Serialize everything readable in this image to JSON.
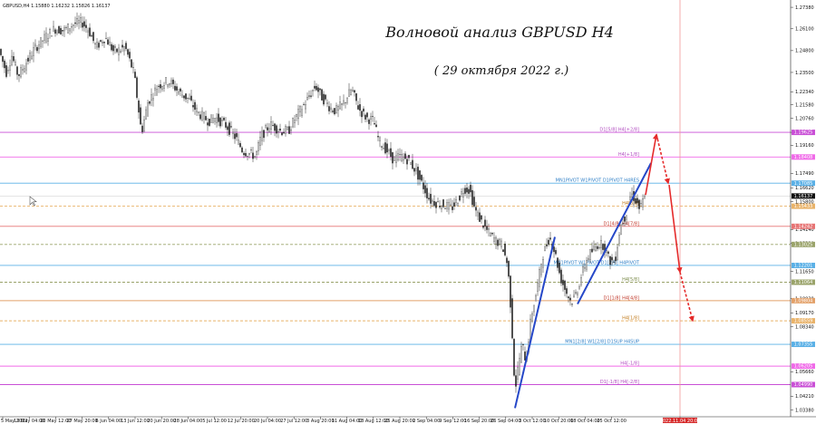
{
  "header": {
    "symbol_line": "GBPUSD,H4  1.15880 1.16232 1.15826 1.16137",
    "title": "Волновой анализ GBPUSD H4",
    "subtitle": "( 29 октября 2022 г.)"
  },
  "chart_data": {
    "type": "candlestick",
    "symbol": "GBPUSD",
    "timeframe": "H4",
    "ylim": [
      1.032,
      1.276
    ],
    "y_ticks": [
      "1.27380",
      "1.26100",
      "1.24800",
      "1.23500",
      "1.22340",
      "1.21580",
      "1.20760",
      "1.19930",
      "1.19160",
      "1.17490",
      "1.16620",
      "1.15800",
      "1.14140",
      "1.13320",
      "1.11650",
      "1.10020",
      "1.09170",
      "1.08340",
      "1.05660",
      "1.04210",
      "1.03380"
    ],
    "x_labels": [
      "5 May 2022",
      "13 May 04:00",
      "20 May 12:00",
      "27 May 20:00",
      "6 Jun 04:00",
      "13 Jun 12:00",
      "20 Jun 20:00",
      "28 Jun 04:00",
      "5 Jul 12:00",
      "12 Jul 20:00",
      "20 Jul 04:00",
      "27 Jul 12:00",
      "3 Aug 20:00",
      "11 Aug 04:00",
      "18 Aug 12:00",
      "25 Aug 20:00",
      "2 Sep 04:00",
      "9 Sep 12:00",
      "16 Sep 20:00",
      "26 Sep 04:00",
      "3 Oct 12:00",
      "10 Oct 20:00",
      "18 Oct 04:00",
      "25 Oct 12:00",
      "2022.11.04 20:00"
    ],
    "price_path": [
      [
        0,
        1.251
      ],
      [
        4,
        1.243
      ],
      [
        9,
        1.235
      ],
      [
        15,
        1.245
      ],
      [
        22,
        1.233
      ],
      [
        30,
        1.24
      ],
      [
        40,
        1.249
      ],
      [
        52,
        1.256
      ],
      [
        62,
        1.261
      ],
      [
        72,
        1.26
      ],
      [
        84,
        1.264
      ],
      [
        92,
        1.265
      ],
      [
        100,
        1.26
      ],
      [
        108,
        1.25
      ],
      [
        118,
        1.256
      ],
      [
        128,
        1.247
      ],
      [
        140,
        1.25
      ],
      [
        150,
        1.234
      ],
      [
        158,
        1.199
      ],
      [
        165,
        1.217
      ],
      [
        176,
        1.227
      ],
      [
        188,
        1.23
      ],
      [
        200,
        1.223
      ],
      [
        210,
        1.219
      ],
      [
        220,
        1.211
      ],
      [
        232,
        1.206
      ],
      [
        240,
        1.208
      ],
      [
        252,
        1.203
      ],
      [
        262,
        1.196
      ],
      [
        270,
        1.188
      ],
      [
        276,
        1.187
      ],
      [
        284,
        1.185
      ],
      [
        290,
        1.197
      ],
      [
        300,
        1.204
      ],
      [
        312,
        1.2
      ],
      [
        320,
        1.2
      ],
      [
        328,
        1.208
      ],
      [
        340,
        1.218
      ],
      [
        350,
        1.227
      ],
      [
        356,
        1.221
      ],
      [
        366,
        1.214
      ],
      [
        372,
        1.212
      ],
      [
        380,
        1.216
      ],
      [
        390,
        1.225
      ],
      [
        398,
        1.213
      ],
      [
        406,
        1.208
      ],
      [
        414,
        1.206
      ],
      [
        420,
        1.194
      ],
      [
        428,
        1.189
      ],
      [
        436,
        1.183
      ],
      [
        444,
        1.185
      ],
      [
        452,
        1.183
      ],
      [
        460,
        1.177
      ],
      [
        468,
        1.168
      ],
      [
        476,
        1.159
      ],
      [
        484,
        1.157
      ],
      [
        492,
        1.156
      ],
      [
        500,
        1.154
      ],
      [
        508,
        1.16
      ],
      [
        514,
        1.166
      ],
      [
        520,
        1.165
      ],
      [
        526,
        1.153
      ],
      [
        534,
        1.145
      ],
      [
        540,
        1.14
      ],
      [
        548,
        1.135
      ],
      [
        556,
        1.132
      ],
      [
        562,
        1.12
      ],
      [
        566,
        1.09
      ],
      [
        570,
        1.045
      ],
      [
        574,
        1.062
      ],
      [
        578,
        1.073
      ],
      [
        582,
        1.063
      ],
      [
        588,
        1.09
      ],
      [
        594,
        1.105
      ],
      [
        600,
        1.125
      ],
      [
        608,
        1.137
      ],
      [
        614,
        1.128
      ],
      [
        620,
        1.113
      ],
      [
        626,
        1.105
      ],
      [
        632,
        1.098
      ],
      [
        638,
        1.104
      ],
      [
        644,
        1.115
      ],
      [
        650,
        1.125
      ],
      [
        656,
        1.129
      ],
      [
        662,
        1.133
      ],
      [
        668,
        1.132
      ],
      [
        674,
        1.123
      ],
      [
        680,
        1.122
      ],
      [
        686,
        1.143
      ],
      [
        692,
        1.15
      ],
      [
        698,
        1.163
      ],
      [
        704,
        1.158
      ],
      [
        708,
        1.153
      ],
      [
        712,
        1.16
      ]
    ],
    "wave_lines": [
      {
        "color": "#2547c8",
        "points": [
          [
            568,
            1.035
          ],
          [
            612,
            1.137
          ]
        ]
      },
      {
        "color": "#2547c8",
        "points": [
          [
            637,
            1.097
          ],
          [
            718,
            1.181
          ]
        ]
      }
    ],
    "forecast": {
      "color": "#e52b2b",
      "solid": [
        [
          [
            712,
            1.162
          ],
          [
            724,
            1.198
          ]
        ],
        [
          [
            738,
            1.168
          ],
          [
            750,
            1.116
          ]
        ]
      ],
      "dashed": [
        [
          [
            724,
            1.198
          ],
          [
            737,
            1.169
          ]
        ],
        [
          [
            750,
            1.116
          ],
          [
            764,
            1.087
          ]
        ]
      ]
    },
    "levels": [
      {
        "y": 1.1993,
        "color": "#c94fd6",
        "label": "D1[5/8] H4[+2/8]",
        "tag": "1.19625",
        "label_color": "#b14cc0"
      },
      {
        "y": 1.1846,
        "color": "#f06ae8",
        "label": "H4[+1/8]",
        "tag": "1.18408",
        "label_color": "#b14cc0"
      },
      {
        "y": 1.169,
        "color": "#5ab0e6",
        "label": "MN1PIVOT W1PIVOT D1PIVOT H4RES",
        "tag": "1.17085",
        "label_color": "#2f7fc6"
      },
      {
        "y": 1.1553,
        "color": "#e9b36a",
        "label": "H4[8/8]",
        "tag": "1.15433",
        "label_color": "#c27c1e"
      },
      {
        "y": 1.1433,
        "color": "#e77474",
        "label": "D1[4/8] H4[7/8]",
        "tag": "1.14242",
        "label_color": "#c0392b"
      },
      {
        "y": 1.1325,
        "color": "#9aa36a",
        "label": "",
        "tag": "1.13025",
        "label_color": "#7a8a4a"
      },
      {
        "y": 1.12,
        "color": "#5ab0e6",
        "label": "MN1PIVOT W1PIVOT D1[2/8] H4PIVOT",
        "tag": "1.12201",
        "label_color": "#2f7fc6"
      },
      {
        "y": 1.11,
        "color": "#9aa36a",
        "label": "H4[5/8]",
        "tag": "1.11064",
        "label_color": "#7a8a4a"
      },
      {
        "y": 1.099,
        "color": "#e3a16a",
        "label": "D1[1/8] H4[4/8]",
        "tag": "1.09804",
        "label_color": "#c0392b"
      },
      {
        "y": 1.087,
        "color": "#e9b36a",
        "label": "H4[1/8]",
        "tag": "1.08559",
        "label_color": "#c27c1e"
      },
      {
        "y": 1.073,
        "color": "#5ab0e6",
        "label": "MN1[2/8] W1[2/8] D1SUP H4SUP",
        "tag": "1.07355",
        "label_color": "#2f7fc6"
      },
      {
        "y": 1.06,
        "color": "#f06ae8",
        "label": "H4[-1/8]",
        "tag": "1.06205",
        "label_color": "#b14cc0"
      },
      {
        "y": 1.049,
        "color": "#c94fd6",
        "label": "D1[-1/8] H4[-2/8]",
        "tag": "1.04990",
        "label_color": "#b14cc0"
      }
    ],
    "current_price": {
      "value": 1.16137,
      "label": "1.16137"
    },
    "future_line_label": "2022.11.04 20:00"
  }
}
